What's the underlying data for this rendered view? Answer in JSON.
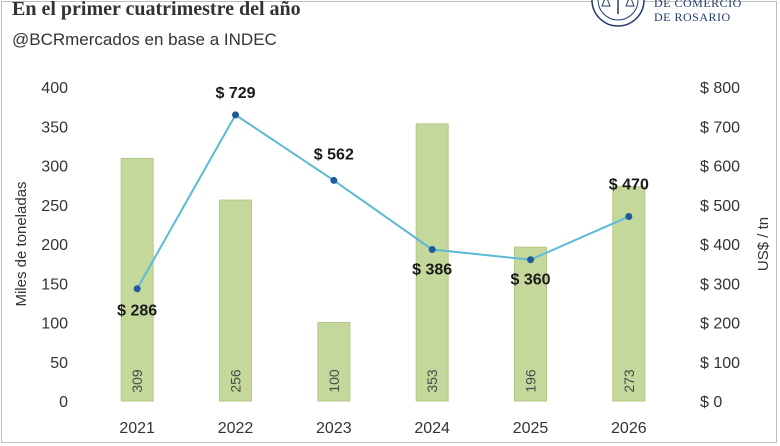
{
  "header": {
    "title": "En el primer cuatrimestre del año",
    "subtitle": "@BCRmercados en base a INDEC"
  },
  "logo": {
    "line1": "DE COMERCIO",
    "line2": "DE ROSARIO"
  },
  "colors": {
    "bar": "#c5d89b",
    "bar_edge": "#b3c987",
    "line": "#5bbad5",
    "marker": "#1f5a99"
  },
  "chart_data": {
    "type": "bar",
    "categories": [
      "2021",
      "2022",
      "2023",
      "2024",
      "2025",
      "2026"
    ],
    "series": [
      {
        "axis": "left",
        "type": "bar",
        "values": [
          309,
          256,
          100,
          353,
          196,
          273
        ]
      },
      {
        "axis": "right",
        "type": "line",
        "values": [
          286,
          729,
          562,
          386,
          360,
          470
        ],
        "labels": [
          "$ 286",
          "$ 729",
          "$ 562",
          "$ 386",
          "$ 360",
          "$ 470"
        ]
      }
    ],
    "ylabel": "Miles de toneladas",
    "ylabel_right": "US$ / tn",
    "ylim": [
      0,
      400
    ],
    "ylim_right": [
      0,
      800
    ],
    "yticks": [
      "0",
      "50",
      "100",
      "150",
      "200",
      "250",
      "300",
      "350",
      "400"
    ],
    "yticks_right": [
      "$ 0",
      "$ 100",
      "$ 200",
      "$ 300",
      "$ 400",
      "$ 500",
      "$ 600",
      "$ 700",
      "$ 800"
    ],
    "grid": false
  }
}
